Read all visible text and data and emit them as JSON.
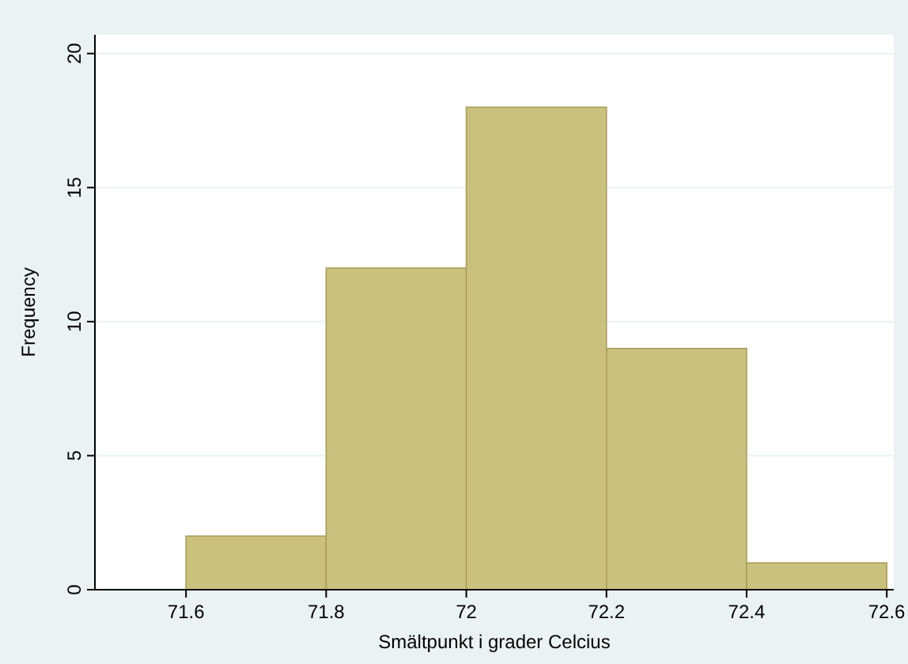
{
  "chart_data": {
    "type": "histogram",
    "xlabel": "Smältpunkt i grader Celcius",
    "ylabel": "Frequency",
    "bins": [
      71.6,
      71.8,
      72.0,
      72.2,
      72.4,
      72.6
    ],
    "values": [
      2,
      12,
      18,
      9,
      1
    ],
    "color": "#cbc17f",
    "xlim": [
      71.47,
      72.61
    ],
    "xticks": [
      71.6,
      71.8,
      72,
      72.2,
      72.4,
      72.6
    ],
    "ylim": [
      0,
      20.7
    ],
    "yticks": [
      0,
      5,
      10,
      15,
      20
    ],
    "grid": "y"
  }
}
